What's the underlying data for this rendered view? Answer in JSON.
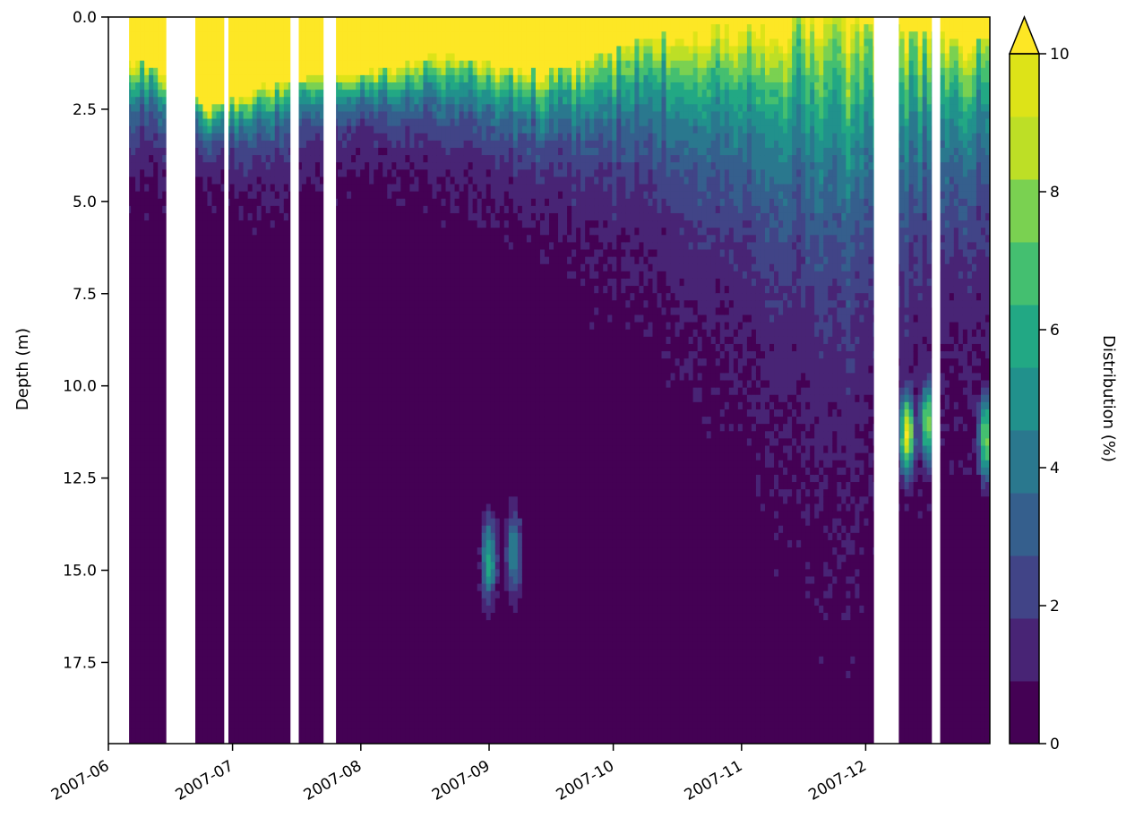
{
  "chart_data": {
    "type": "heatmap",
    "subtype": "filled-contour",
    "title": "",
    "xlabel": "",
    "ylabel": "Depth (m)",
    "x_axis": {
      "kind": "date",
      "range": [
        "2007-06-01",
        "2007-12-31"
      ],
      "ticks": [
        "2007-06",
        "2007-07",
        "2007-08",
        "2007-09",
        "2007-10",
        "2007-11",
        "2007-12"
      ]
    },
    "y_axis": {
      "range": [
        0,
        19.7
      ],
      "inverted": true,
      "ticks": [
        "0.0",
        "2.5",
        "5.0",
        "7.5",
        "10.0",
        "12.5",
        "15.0",
        "17.5"
      ]
    },
    "colorbar": {
      "label": "Distribution (%)",
      "range": [
        0,
        10
      ],
      "extend": "max",
      "ticks": [
        "0",
        "2",
        "4",
        "6",
        "8",
        "10"
      ],
      "levels": 13,
      "colormap": [
        "#440154",
        "#482475",
        "#414487",
        "#355f8d",
        "#2a788e",
        "#21918c",
        "#22a884",
        "#44bf70",
        "#7ad151",
        "#bddf26",
        "#dde318",
        "#fde725"
      ]
    },
    "data_gaps": [
      [
        "2007-06-01",
        "2007-06-06"
      ],
      [
        "2007-06-15",
        "2007-06-22"
      ],
      [
        "2007-06-29",
        "2007-06-30"
      ],
      [
        "2007-07-15",
        "2007-07-17"
      ],
      [
        "2007-07-23",
        "2007-07-26"
      ],
      [
        "2007-12-03",
        "2007-12-09"
      ],
      [
        "2007-12-17",
        "2007-12-19"
      ]
    ],
    "surface_layer": [
      {
        "date": "2007-06-10",
        "yellow_depth": 1.2,
        "mixed_depth": 4.0
      },
      {
        "date": "2007-06-25",
        "yellow_depth": 2.5,
        "mixed_depth": 4.3
      },
      {
        "date": "2007-07-10",
        "yellow_depth": 1.8,
        "mixed_depth": 4.5
      },
      {
        "date": "2007-08-01",
        "yellow_depth": 1.5,
        "mixed_depth": 3.5
      },
      {
        "date": "2007-08-20",
        "yellow_depth": 1.0,
        "mixed_depth": 4.0
      },
      {
        "date": "2007-09-15",
        "yellow_depth": 1.5,
        "mixed_depth": 5.0
      },
      {
        "date": "2007-10-10",
        "yellow_depth": 0.5,
        "mixed_depth": 6.0
      },
      {
        "date": "2007-11-01",
        "yellow_depth": 0.2,
        "mixed_depth": 7.5
      },
      {
        "date": "2007-11-25",
        "yellow_depth": 0.0,
        "mixed_depth": 11.0
      },
      {
        "date": "2007-12-20",
        "yellow_depth": 0.5,
        "mixed_depth": 8.0
      }
    ],
    "hotspots": [
      {
        "date": "2007-09-01",
        "depth": 14.7,
        "value": 6
      },
      {
        "date": "2007-09-07",
        "depth": 14.5,
        "value": 5
      },
      {
        "date": "2007-12-11",
        "depth": 11.3,
        "value": 10
      },
      {
        "date": "2007-12-16",
        "depth": 11.0,
        "value": 8
      },
      {
        "date": "2007-12-30",
        "depth": 11.4,
        "value": 8
      }
    ]
  }
}
